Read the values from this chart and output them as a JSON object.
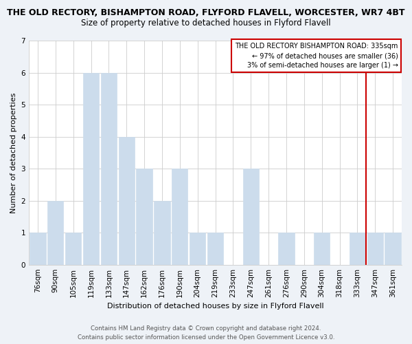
{
  "title_line1": "THE OLD RECTORY, BISHAMPTON ROAD, FLYFORD FLAVELL, WORCESTER, WR7 4BT",
  "title_line2": "Size of property relative to detached houses in Flyford Flavell",
  "xlabel": "Distribution of detached houses by size in Flyford Flavell",
  "ylabel": "Number of detached properties",
  "bar_labels": [
    "76sqm",
    "90sqm",
    "105sqm",
    "119sqm",
    "133sqm",
    "147sqm",
    "162sqm",
    "176sqm",
    "190sqm",
    "204sqm",
    "219sqm",
    "233sqm",
    "247sqm",
    "261sqm",
    "276sqm",
    "290sqm",
    "304sqm",
    "318sqm",
    "333sqm",
    "347sqm",
    "361sqm"
  ],
  "bar_values": [
    1,
    2,
    1,
    6,
    6,
    4,
    3,
    2,
    3,
    1,
    1,
    0,
    3,
    0,
    1,
    0,
    1,
    0,
    1,
    1,
    1
  ],
  "bar_color": "#ccdcec",
  "plot_bg": "#ffffff",
  "fig_bg": "#eef2f7",
  "vline_color": "#cc0000",
  "vline_x_index": 18,
  "legend_title": "THE OLD RECTORY BISHAMPTON ROAD: 335sqm",
  "legend_line1": "← 97% of detached houses are smaller (36)",
  "legend_line2": "3% of semi-detached houses are larger (1) →",
  "ylim": [
    0,
    7
  ],
  "yticks": [
    0,
    1,
    2,
    3,
    4,
    5,
    6,
    7
  ],
  "footer_line1": "Contains HM Land Registry data © Crown copyright and database right 2024.",
  "footer_line2": "Contains public sector information licensed under the Open Government Licence v3.0.",
  "title_fontsize": 9,
  "subtitle_fontsize": 8.5,
  "axis_label_fontsize": 8,
  "tick_fontsize": 7.5
}
